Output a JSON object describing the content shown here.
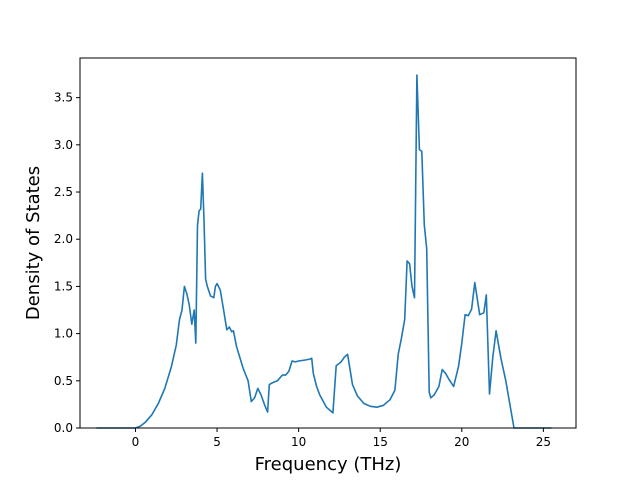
{
  "chart_data": {
    "type": "line",
    "title": "",
    "xlabel": "Frequency (THz)",
    "ylabel": "Density of States",
    "xlim": [
      -3.4,
      27.0
    ],
    "ylim": [
      0.0,
      3.92
    ],
    "xticks": [
      0,
      5,
      10,
      15,
      20,
      25
    ],
    "yticks": [
      0.0,
      0.5,
      1.0,
      1.5,
      2.0,
      2.5,
      3.0,
      3.5
    ],
    "xtick_labels": [
      "0",
      "5",
      "10",
      "15",
      "20",
      "25"
    ],
    "ytick_labels": [
      "0.0",
      "0.5",
      "1.0",
      "1.5",
      "2.0",
      "2.5",
      "3.0",
      "3.5"
    ],
    "grid": false,
    "legend": "none",
    "colors": {
      "series": "#1f77b4",
      "axis": "#000000",
      "background": "#ffffff"
    },
    "series": [
      {
        "name": "",
        "x": [
          -2.4,
          0.0,
          0.3,
          0.6,
          1.0,
          1.4,
          1.8,
          2.2,
          2.5,
          2.7,
          2.85,
          3.0,
          3.15,
          3.3,
          3.45,
          3.6,
          3.7,
          3.8,
          3.9,
          4.0,
          4.1,
          4.2,
          4.3,
          4.4,
          4.6,
          4.8,
          4.9,
          5.0,
          5.2,
          5.4,
          5.6,
          5.75,
          5.9,
          6.0,
          6.2,
          6.6,
          6.9,
          7.1,
          7.3,
          7.5,
          7.7,
          7.9,
          8.1,
          8.2,
          8.4,
          8.7,
          9.0,
          9.2,
          9.4,
          9.6,
          9.8,
          10.0,
          10.4,
          10.7,
          10.8,
          10.9,
          11.1,
          11.3,
          11.7,
          12.1,
          12.3,
          12.6,
          12.8,
          13.0,
          13.3,
          13.6,
          14.0,
          14.4,
          14.8,
          15.2,
          15.6,
          15.9,
          16.1,
          16.3,
          16.5,
          16.65,
          16.8,
          16.95,
          17.1,
          17.25,
          17.4,
          17.55,
          17.7,
          17.85,
          18.0,
          18.1,
          18.3,
          18.6,
          18.8,
          19.0,
          19.2,
          19.5,
          19.8,
          20.0,
          20.2,
          20.4,
          20.6,
          20.8,
          21.1,
          21.35,
          21.5,
          21.7,
          21.9,
          22.1,
          22.4,
          22.7,
          23.0,
          23.2,
          25.5
        ],
        "y": [
          0.0,
          0.0,
          0.02,
          0.06,
          0.14,
          0.26,
          0.42,
          0.65,
          0.88,
          1.15,
          1.25,
          1.5,
          1.42,
          1.3,
          1.1,
          1.25,
          0.9,
          2.15,
          2.3,
          2.32,
          2.7,
          2.2,
          1.58,
          1.5,
          1.4,
          1.38,
          1.5,
          1.53,
          1.46,
          1.25,
          1.04,
          1.07,
          1.02,
          1.03,
          0.86,
          0.63,
          0.5,
          0.28,
          0.32,
          0.42,
          0.35,
          0.25,
          0.17,
          0.46,
          0.48,
          0.5,
          0.56,
          0.56,
          0.6,
          0.71,
          0.7,
          0.71,
          0.72,
          0.73,
          0.74,
          0.58,
          0.44,
          0.35,
          0.22,
          0.16,
          0.66,
          0.7,
          0.75,
          0.78,
          0.46,
          0.34,
          0.26,
          0.23,
          0.22,
          0.24,
          0.3,
          0.4,
          0.78,
          0.95,
          1.15,
          1.77,
          1.74,
          1.5,
          1.38,
          3.74,
          2.95,
          2.93,
          2.15,
          1.9,
          0.38,
          0.32,
          0.35,
          0.44,
          0.62,
          0.58,
          0.52,
          0.44,
          0.65,
          0.9,
          1.2,
          1.19,
          1.26,
          1.54,
          1.2,
          1.22,
          1.41,
          0.36,
          0.75,
          1.03,
          0.74,
          0.5,
          0.2,
          0.0,
          0.0
        ]
      }
    ]
  }
}
